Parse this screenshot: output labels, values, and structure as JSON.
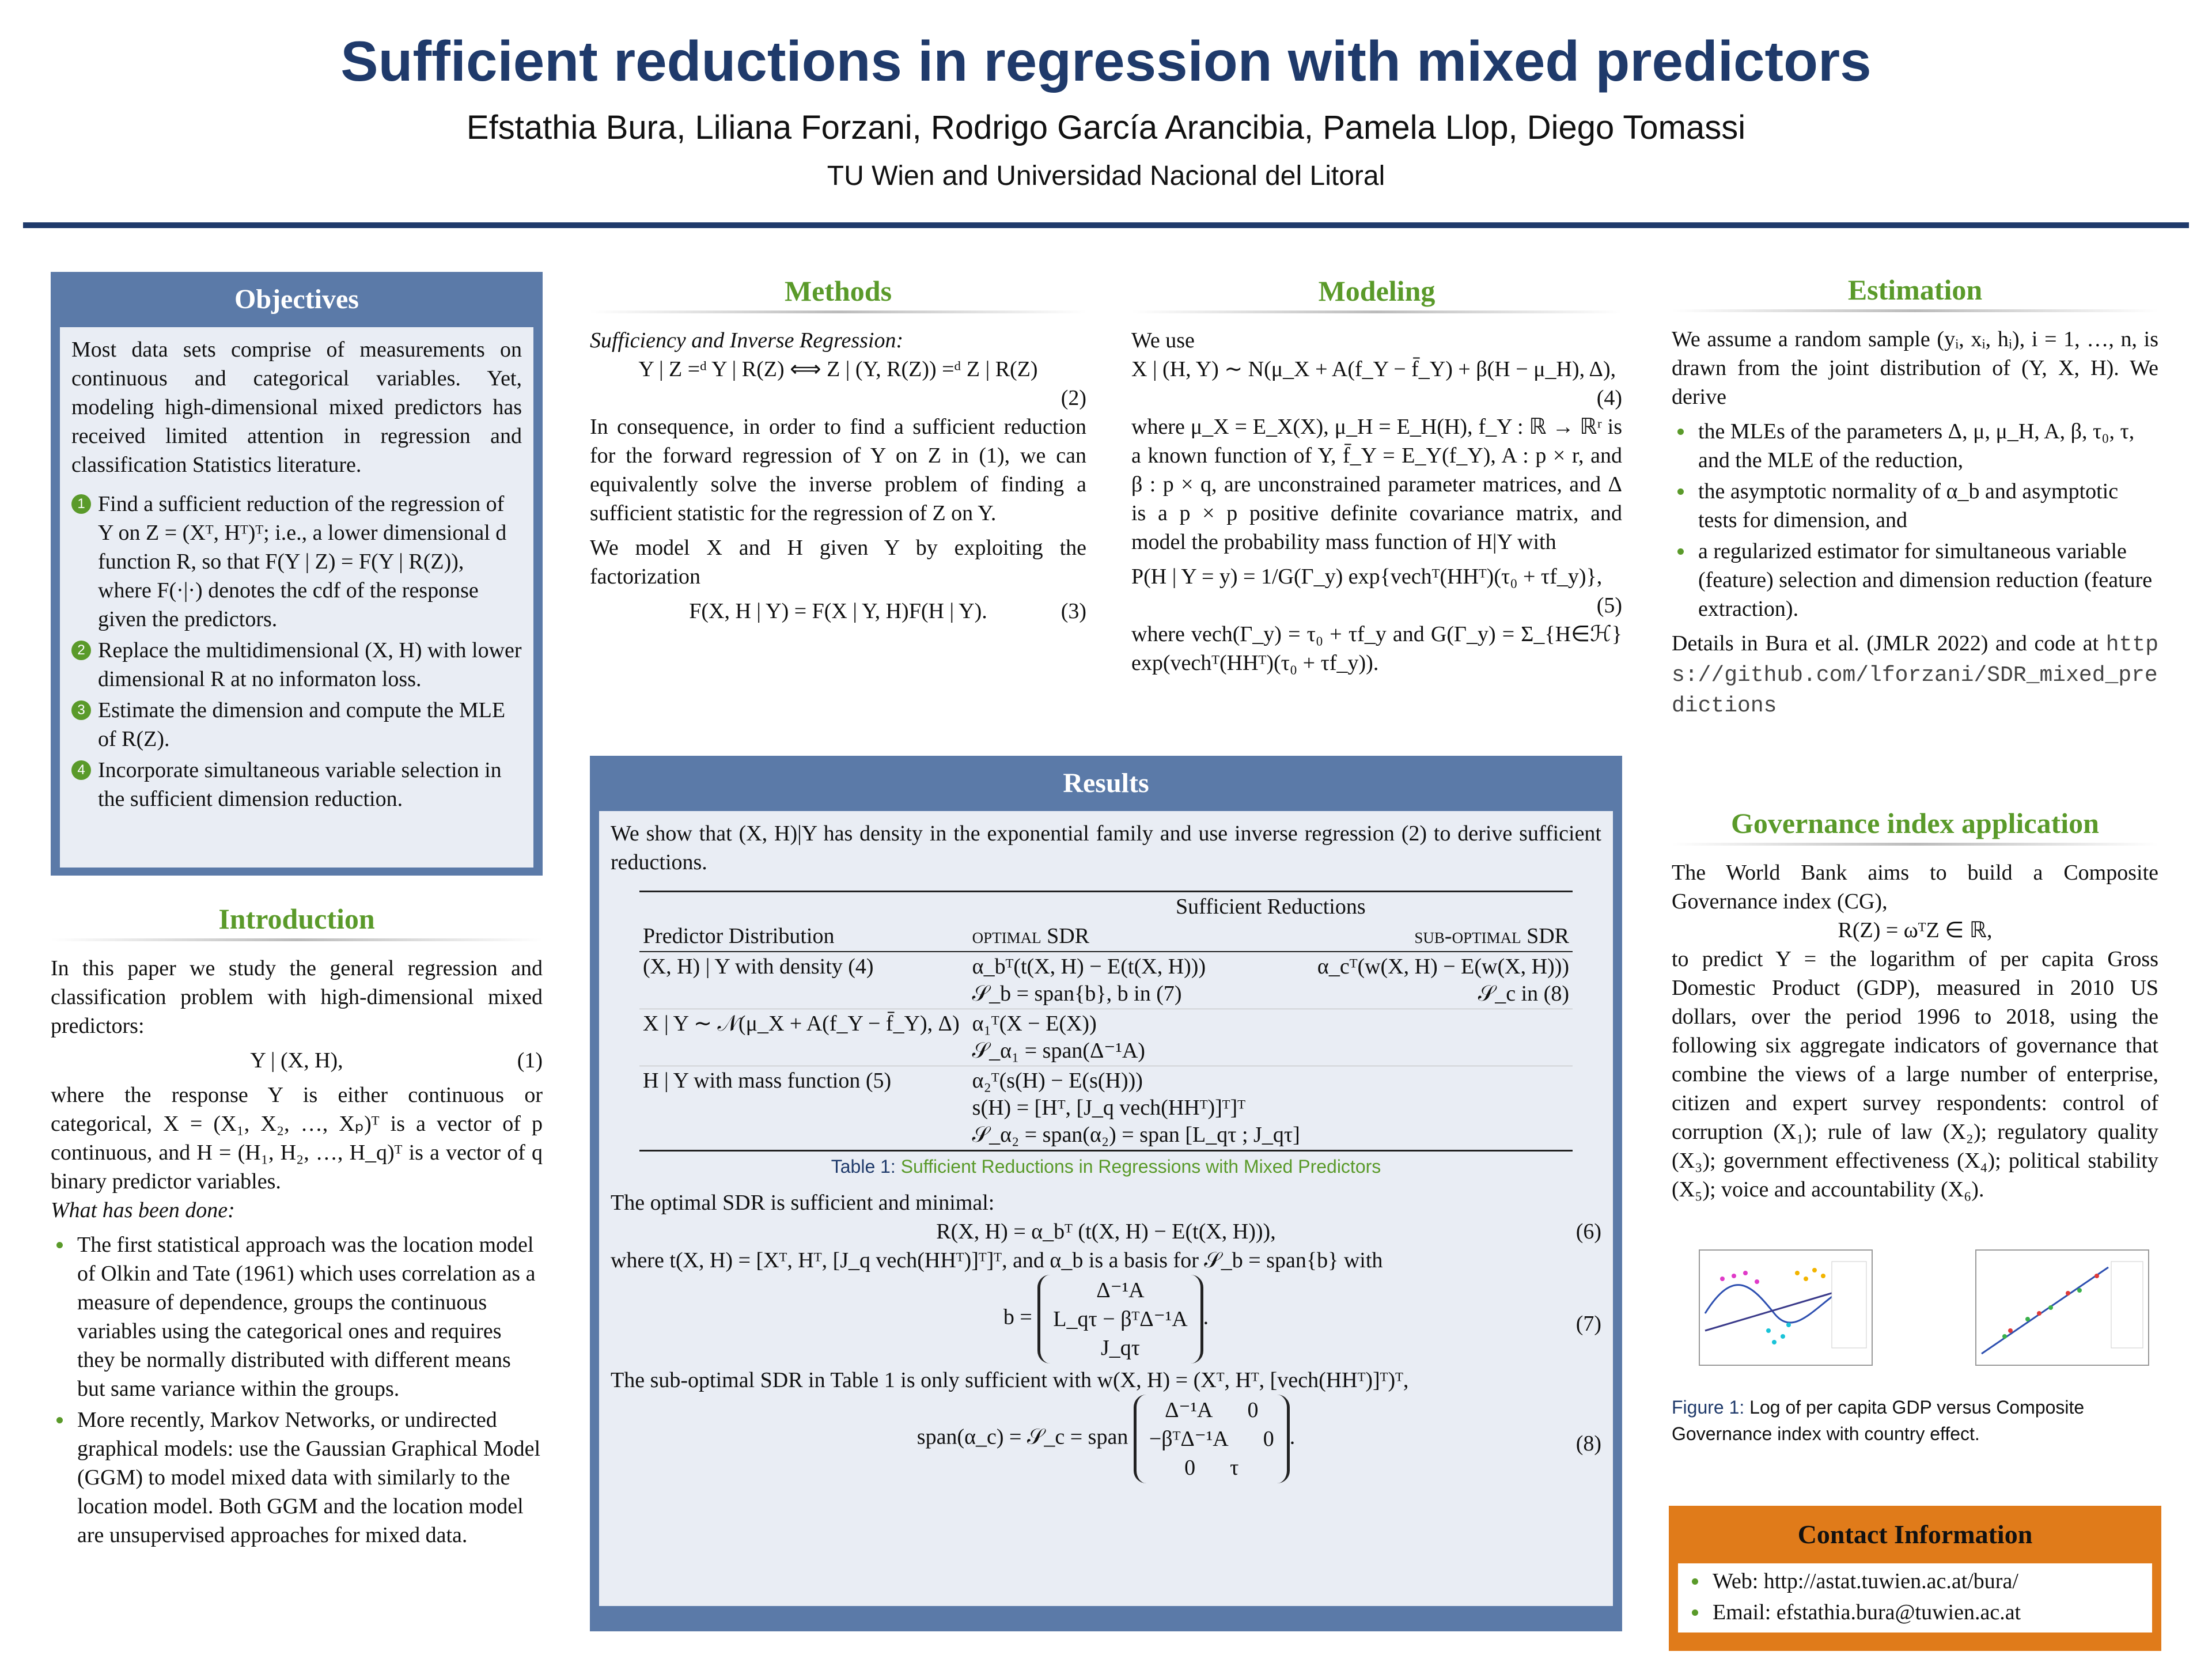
{
  "header": {
    "title": "Sufficient reductions in regression with mixed predictors",
    "authors": "Efstathia Bura, Liliana Forzani, Rodrigo García Arancibia, Pamela Llop, Diego Tomassi",
    "affiliation": "TU Wien and Universidad Nacional del Litoral"
  },
  "objectives": {
    "title": "Objectives",
    "intro": "Most data sets comprise of measurements on continuous and categorical variables. Yet, modeling high-dimensional mixed predictors has received limited attention in regression and classification Statistics literature.",
    "items": [
      {
        "marker": "1",
        "text": "Find a sufficient reduction of the regression of Y on Z = (Xᵀ, Hᵀ)ᵀ; i.e., a lower dimensional d function R, so that F(Y | Z) = F(Y | R(Z)), where F(·|·) denotes the cdf of the response given the predictors."
      },
      {
        "marker": "2",
        "text": "Replace the multidimensional (X, H) with lower dimensional R at no informaton loss."
      },
      {
        "marker": "3",
        "text": "Estimate the dimension and compute the MLE of R(Z)."
      },
      {
        "marker": "4",
        "text": "Incorporate simultaneous variable selection in the sufficient dimension reduction."
      }
    ]
  },
  "introduction": {
    "title": "Introduction",
    "p1": "In this paper we study the general regression and classification problem with high-dimensional mixed predictors:",
    "eq1": "Y | (X, H),",
    "eq1_num": "(1)",
    "p2": "where the response Y is either continuous or categorical, X = (X₁, X₂, …, Xₚ)ᵀ is a vector of p continuous, and H = (H₁, H₂, …, H_q)ᵀ is a vector of q binary predictor variables.",
    "subheading": "What has been done:",
    "bullets": [
      "The first statistical approach was the location model of Olkin and Tate (1961) which uses correlation as a measure of dependence, groups the continuous variables using the categorical ones and requires they be normally distributed with different means but same variance within the groups.",
      "More recently, Markov Networks, or undirected graphical models: use the Gaussian Graphical Model (GGM) to model mixed data with similarly to the location model. Both GGM and the location model are unsupervised approaches for mixed data."
    ]
  },
  "methods": {
    "title": "Methods",
    "subtitle": "Sufficiency and Inverse Regression:",
    "eq2": "Y | Z =ᵈ Y | R(Z) ⟺ Z | (Y, R(Z)) =ᵈ Z | R(Z)",
    "eq2_num": "(2)",
    "p1": "In consequence, in order to find a sufficient reduction for the forward regression of Y on Z in (1), we can equivalently solve the inverse problem of finding a sufficient statistic for the regression of Z on Y.",
    "p2": "We model X and H given Y by exploiting the factorization",
    "eq3": "F(X, H | Y) = F(X | Y, H)F(H | Y).",
    "eq3_num": "(3)"
  },
  "modeling": {
    "title": "Modeling",
    "p0": "We use",
    "eq4": "X | (H, Y) ∼ N(μ_X + A(f_Y − f̄_Y) + β(H − μ_H), Δ),",
    "eq4_num": "(4)",
    "p1": "where μ_X = E_X(X), μ_H = E_H(H), f_Y : ℝ → ℝʳ is a known function of Y, f̄_Y = E_Y(f_Y), A : p × r, and β : p × q, are unconstrained parameter matrices, and Δ is a p × p positive definite covariance matrix, and model the probability mass function of H|Y with",
    "eq5": "P(H | Y = y) = 1/G(Γ_y) exp{vechᵀ(HHᵀ)(τ₀ + τf_y)},",
    "eq5_num": "(5)",
    "p2": "where vech(Γ_y) = τ₀ + τf_y and G(Γ_y) = Σ_{H∈ℋ} exp(vechᵀ(HHᵀ)(τ₀ + τf_y))."
  },
  "estimation": {
    "title": "Estimation",
    "p1": "We assume a random sample (yᵢ, xᵢ, hᵢ), i = 1, …, n, is drawn from the joint distribution of (Y, X, H). We derive",
    "bullets": [
      "the MLEs of the parameters Δ, μ, μ_H, A, β, τ₀, τ, and the MLE of the reduction,",
      "the asymptotic normality of α_b and asymptotic tests for dimension, and",
      "a regularized estimator for simultaneous variable (feature) selection and dimension reduction (feature extraction)."
    ],
    "p2": "Details in Bura et al. (JMLR 2022) and code at",
    "url": "https://github.com/lforzani/SDR_mixed_predictions"
  },
  "governance": {
    "title": "Governance index application",
    "p1": "The World Bank aims to build a Composite Governance index (CG),",
    "eq": "R(Z) = ωᵀZ ∈ ℝ,",
    "p2": "to predict Y = the logarithm of per capita Gross Domestic Product (GDP), measured in 2010 US dollars, over the period 1996 to 2018, using the following six aggregate indicators of governance that combine the views of a large number of enterprise, citizen and expert survey respondents: control of corruption (X₁); rule of law (X₂); regulatory quality (X₃); government effectiveness (X₄); political stability (X₅); voice and accountability (X₆).",
    "caption_label": "Figure 1:",
    "caption_text": "Log of per capita GDP versus Composite Governance index with country effect."
  },
  "results": {
    "title": "Results",
    "intro": "We show that (X, H)|Y has density in the exponential family and use inverse regression (2) to derive sufficient reductions.",
    "table": {
      "group_header": "Sufficient Reductions",
      "columns": [
        "Predictor Distribution",
        "optimal SDR",
        "sub-optimal SDR"
      ],
      "rows": [
        {
          "predictor": "(X, H) | Y with density (4)",
          "optimal": [
            "α_bᵀ(t(X, H) − E(t(X, H)))",
            "𝒮_b = span{b}, b in (7)"
          ],
          "suboptimal": [
            "α_cᵀ(w(X, H) − E(w(X, H)))",
            "𝒮_c in (8)"
          ]
        },
        {
          "predictor": "X | Y ∼ 𝒩(μ_X + A(f_Y − f̄_Y), Δ)",
          "optimal": [
            "α₁ᵀ(X − E(X))",
            "𝒮_α₁ = span(Δ⁻¹A)"
          ]
        },
        {
          "predictor": "H | Y with mass function (5)",
          "optimal": [
            "α₂ᵀ(s(H) − E(s(H)))",
            "s(H) = [Hᵀ, [J_q vech(HHᵀ)]ᵀ]ᵀ",
            "𝒮_α₂ = span(α₂) = span [L_qτ ; J_qτ]"
          ]
        }
      ],
      "caption_label": "Table 1:",
      "caption_text": "Sufficient Reductions in Regressions with Mixed Predictors"
    },
    "p1": "The optimal SDR is sufficient and minimal:",
    "eq6": "R(X, H) = α_bᵀ (t(X, H) − E(t(X, H))),",
    "eq6_num": "(6)",
    "p2": "where t(X, H) = [Xᵀ, Hᵀ, [J_q vech(HHᵀ)]ᵀ]ᵀ, and α_b is a basis for 𝒮_b = span{b} with",
    "eq7": {
      "lhs": "b =",
      "rows": [
        "Δ⁻¹A",
        "L_qτ − βᵀΔ⁻¹A",
        "J_qτ"
      ],
      "end": ".",
      "num": "(7)"
    },
    "p3": "The sub-optimal SDR in Table 1 is only sufficient with w(X, H) = (Xᵀ, Hᵀ, [vech(HHᵀ)]ᵀ)ᵀ,",
    "eq8": {
      "lhs": "span(α_c) = 𝒮_c = span",
      "rows": [
        [
          "Δ⁻¹A",
          "0"
        ],
        [
          "−βᵀΔ⁻¹A",
          "0"
        ],
        [
          "0",
          "τ"
        ]
      ],
      "end": ".",
      "num": "(8)"
    }
  },
  "contact": {
    "title": "Contact Information",
    "items": [
      "Web: http://astat.tuwien.ac.at/bura/",
      "Email: efstathia.bura@tuwien.ac.at"
    ]
  }
}
